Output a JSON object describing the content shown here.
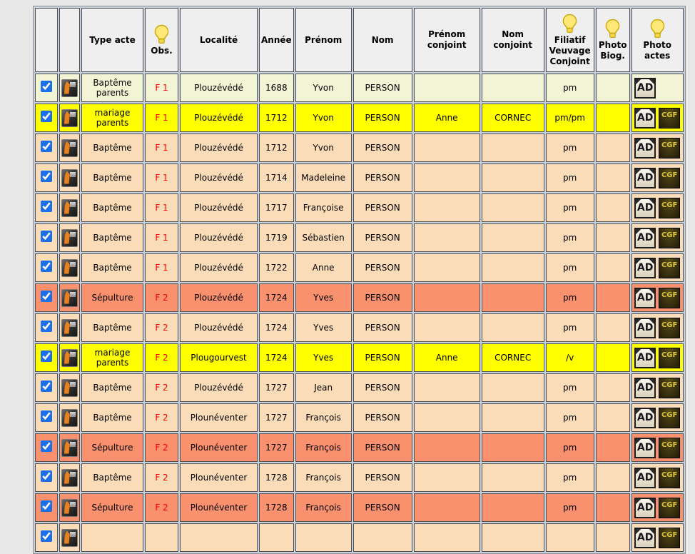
{
  "page": {
    "background_color": "#e7e7e7"
  },
  "table": {
    "spacing_color": "#c7d0df",
    "header_bg": "#efefef",
    "obs_text_color": "#ff0000",
    "row_colors": {
      "cream": "#f3f3d6",
      "yellow": "#ffff00",
      "peach": "#fadcb8",
      "salmon": "#f9916f"
    },
    "buttons": {
      "ad_label": "AD",
      "cgf_label": "CGF"
    },
    "header": {
      "columns": [
        {
          "key": "select",
          "label": "",
          "bulb": false
        },
        {
          "key": "photo",
          "label": "",
          "bulb": false
        },
        {
          "key": "type_acte",
          "label": "Type acte",
          "bulb": false
        },
        {
          "key": "obs",
          "label": "Obs.",
          "bulb": true
        },
        {
          "key": "localite",
          "label": "Localité",
          "bulb": false
        },
        {
          "key": "annee",
          "label": "Année",
          "bulb": false
        },
        {
          "key": "prenom",
          "label": "Prénom",
          "bulb": false
        },
        {
          "key": "nom",
          "label": "Nom",
          "bulb": false
        },
        {
          "key": "prenom_conjoint",
          "label": "Prénom conjoint",
          "bulb": false
        },
        {
          "key": "nom_conjoint",
          "label": "Nom conjoint",
          "bulb": false
        },
        {
          "key": "filiatif",
          "label": "Filiatif Veuvage Conjoint",
          "bulb": true
        },
        {
          "key": "photo_biog",
          "label": "Photo Biog.",
          "bulb": true
        },
        {
          "key": "photo_actes",
          "label": "Photo actes",
          "bulb": true
        }
      ]
    },
    "rows": [
      {
        "checked": true,
        "type_acte": "Baptême parents",
        "obs": "F 1",
        "localite": "Plouzévédé",
        "annee": "1688",
        "prenom": "Yvon",
        "nom": "PERSON",
        "prenom_conjoint": "",
        "nom_conjoint": "",
        "filiatif": "pm",
        "photo_biog": "",
        "ad": true,
        "cgf": false,
        "highlight": "cream"
      },
      {
        "checked": true,
        "type_acte": "mariage parents",
        "obs": "F 1",
        "localite": "Plouzévédé",
        "annee": "1712",
        "prenom": "Yvon",
        "nom": "PERSON",
        "prenom_conjoint": "Anne",
        "nom_conjoint": "CORNEC",
        "filiatif": "pm/pm",
        "photo_biog": "",
        "ad": true,
        "cgf": true,
        "highlight": "yellow"
      },
      {
        "checked": true,
        "type_acte": "Baptême",
        "obs": "F 1",
        "localite": "Plouzévédé",
        "annee": "1712",
        "prenom": "Yvon",
        "nom": "PERSON",
        "prenom_conjoint": "",
        "nom_conjoint": "",
        "filiatif": "pm",
        "photo_biog": "",
        "ad": true,
        "cgf": true,
        "highlight": "peach"
      },
      {
        "checked": true,
        "type_acte": "Baptême",
        "obs": "F 1",
        "localite": "Plouzévédé",
        "annee": "1714",
        "prenom": "Madeleine",
        "nom": "PERSON",
        "prenom_conjoint": "",
        "nom_conjoint": "",
        "filiatif": "pm",
        "photo_biog": "",
        "ad": true,
        "cgf": true,
        "highlight": "peach"
      },
      {
        "checked": true,
        "type_acte": "Baptême",
        "obs": "F 1",
        "localite": "Plouzévédé",
        "annee": "1717",
        "prenom": "Françoise",
        "nom": "PERSON",
        "prenom_conjoint": "",
        "nom_conjoint": "",
        "filiatif": "pm",
        "photo_biog": "",
        "ad": true,
        "cgf": true,
        "highlight": "peach"
      },
      {
        "checked": true,
        "type_acte": "Baptême",
        "obs": "F 1",
        "localite": "Plouzévédé",
        "annee": "1719",
        "prenom": "Sébastien",
        "nom": "PERSON",
        "prenom_conjoint": "",
        "nom_conjoint": "",
        "filiatif": "pm",
        "photo_biog": "",
        "ad": true,
        "cgf": true,
        "highlight": "peach"
      },
      {
        "checked": true,
        "type_acte": "Baptême",
        "obs": "F 1",
        "localite": "Plouzévédé",
        "annee": "1722",
        "prenom": "Anne",
        "nom": "PERSON",
        "prenom_conjoint": "",
        "nom_conjoint": "",
        "filiatif": "pm",
        "photo_biog": "",
        "ad": true,
        "cgf": true,
        "highlight": "peach"
      },
      {
        "checked": true,
        "type_acte": "Sépulture",
        "obs": "F 2",
        "localite": "Plouzévédé",
        "annee": "1724",
        "prenom": "Yves",
        "nom": "PERSON",
        "prenom_conjoint": "",
        "nom_conjoint": "",
        "filiatif": "pm",
        "photo_biog": "",
        "ad": true,
        "cgf": true,
        "highlight": "salmon"
      },
      {
        "checked": true,
        "type_acte": "Baptême",
        "obs": "F 2",
        "localite": "Plouzévédé",
        "annee": "1724",
        "prenom": "Yves",
        "nom": "PERSON",
        "prenom_conjoint": "",
        "nom_conjoint": "",
        "filiatif": "pm",
        "photo_biog": "",
        "ad": true,
        "cgf": true,
        "highlight": "peach"
      },
      {
        "checked": true,
        "type_acte": "mariage parents",
        "obs": "F 2",
        "localite": "Plougourvest",
        "annee": "1724",
        "prenom": "Yves",
        "nom": "PERSON",
        "prenom_conjoint": "Anne",
        "nom_conjoint": "CORNEC",
        "filiatif": "/v",
        "photo_biog": "",
        "ad": true,
        "cgf": true,
        "highlight": "yellow"
      },
      {
        "checked": true,
        "type_acte": "Baptême",
        "obs": "F 2",
        "localite": "Plouzévédé",
        "annee": "1727",
        "prenom": "Jean",
        "nom": "PERSON",
        "prenom_conjoint": "",
        "nom_conjoint": "",
        "filiatif": "pm",
        "photo_biog": "",
        "ad": true,
        "cgf": true,
        "highlight": "peach"
      },
      {
        "checked": true,
        "type_acte": "Baptême",
        "obs": "F 2",
        "localite": "Plounéventer",
        "annee": "1727",
        "prenom": "François",
        "nom": "PERSON",
        "prenom_conjoint": "",
        "nom_conjoint": "",
        "filiatif": "pm",
        "photo_biog": "",
        "ad": true,
        "cgf": true,
        "highlight": "peach"
      },
      {
        "checked": true,
        "type_acte": "Sépulture",
        "obs": "F 2",
        "localite": "Plounéventer",
        "annee": "1727",
        "prenom": "François",
        "nom": "PERSON",
        "prenom_conjoint": "",
        "nom_conjoint": "",
        "filiatif": "pm",
        "photo_biog": "",
        "ad": true,
        "cgf": true,
        "highlight": "salmon"
      },
      {
        "checked": true,
        "type_acte": "Baptême",
        "obs": "F 2",
        "localite": "Plounéventer",
        "annee": "1728",
        "prenom": "François",
        "nom": "PERSON",
        "prenom_conjoint": "",
        "nom_conjoint": "",
        "filiatif": "pm",
        "photo_biog": "",
        "ad": true,
        "cgf": true,
        "highlight": "peach"
      },
      {
        "checked": true,
        "type_acte": "Sépulture",
        "obs": "F 2",
        "localite": "Plounéventer",
        "annee": "1728",
        "prenom": "François",
        "nom": "PERSON",
        "prenom_conjoint": "",
        "nom_conjoint": "",
        "filiatif": "pm",
        "photo_biog": "",
        "ad": true,
        "cgf": true,
        "highlight": "salmon"
      },
      {
        "checked": true,
        "type_acte": "",
        "obs": "",
        "localite": "",
        "annee": "",
        "prenom": "",
        "nom": "",
        "prenom_conjoint": "",
        "nom_conjoint": "",
        "filiatif": "",
        "photo_biog": "",
        "ad": true,
        "cgf": true,
        "highlight": "peach",
        "partial": true
      }
    ]
  }
}
